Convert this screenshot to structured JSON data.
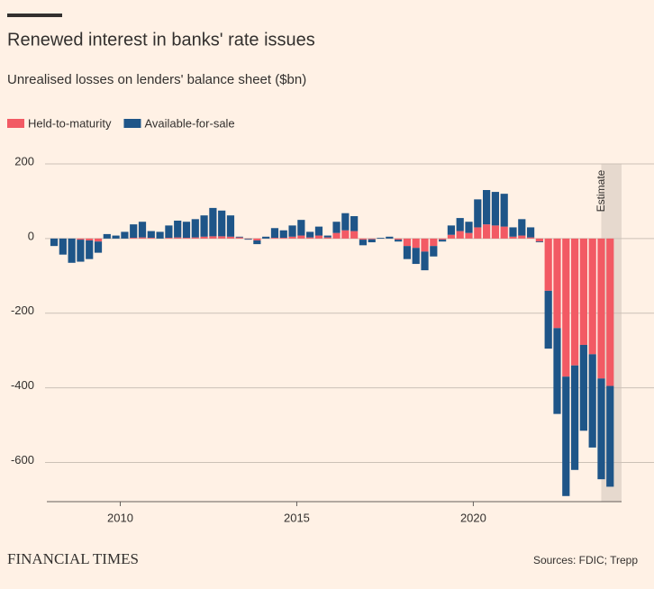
{
  "chart_data": {
    "type": "stacked-bar",
    "title": "Renewed interest in banks' rate issues",
    "subtitle": "Unrealised losses on lenders' balance sheet ($bn)",
    "source": "Sources: FDIC; Trepp",
    "brand": "FINANCIAL TIMES",
    "annotation": {
      "text": "Estimate",
      "range": [
        2023.625,
        2024.2
      ]
    },
    "x": [
      2008.125,
      2008.375,
      2008.625,
      2008.875,
      2009.125,
      2009.375,
      2009.625,
      2009.875,
      2010.125,
      2010.375,
      2010.625,
      2010.875,
      2011.125,
      2011.375,
      2011.625,
      2011.875,
      2012.125,
      2012.375,
      2012.625,
      2012.875,
      2013.125,
      2013.375,
      2013.625,
      2013.875,
      2014.125,
      2014.375,
      2014.625,
      2014.875,
      2015.125,
      2015.375,
      2015.625,
      2015.875,
      2016.125,
      2016.375,
      2016.625,
      2016.875,
      2017.125,
      2017.375,
      2017.625,
      2017.875,
      2018.125,
      2018.375,
      2018.625,
      2018.875,
      2019.125,
      2019.375,
      2019.625,
      2019.875,
      2020.125,
      2020.375,
      2020.625,
      2020.875,
      2021.125,
      2021.375,
      2021.625,
      2021.875,
      2022.125,
      2022.375,
      2022.625,
      2022.875,
      2023.125,
      2023.375,
      2023.625,
      2023.875
    ],
    "series": [
      {
        "name": "Held-to-maturity",
        "color": "#f25a64",
        "values": [
          0,
          0,
          0,
          -3,
          -5,
          -8,
          0,
          0,
          0,
          2,
          3,
          2,
          0,
          2,
          3,
          2,
          3,
          5,
          6,
          6,
          5,
          3,
          -1,
          -5,
          0,
          2,
          2,
          5,
          8,
          3,
          8,
          3,
          15,
          22,
          20,
          -3,
          -2,
          0,
          0,
          -3,
          -20,
          -25,
          -35,
          -20,
          -3,
          10,
          20,
          15,
          30,
          38,
          35,
          32,
          5,
          8,
          3,
          -8,
          -140,
          -240,
          -370,
          -340,
          -285,
          -310,
          -375,
          -395
        ]
      },
      {
        "name": "Available-for-sale",
        "color": "#1e5588",
        "values": [
          -20,
          -43,
          -65,
          -59,
          -50,
          -30,
          12,
          8,
          18,
          36,
          42,
          18,
          18,
          33,
          45,
          43,
          49,
          57,
          76,
          69,
          57,
          2,
          -2,
          -10,
          5,
          26,
          20,
          30,
          42,
          15,
          24,
          5,
          30,
          46,
          40,
          -15,
          -8,
          2,
          5,
          -5,
          -35,
          -43,
          -50,
          -28,
          -5,
          25,
          35,
          30,
          75,
          92,
          90,
          88,
          25,
          44,
          27,
          -2,
          -155,
          -230,
          -320,
          -280,
          -230,
          -250,
          -270,
          -270
        ]
      }
    ],
    "xlim": [
      2007.92,
      2024.2
    ],
    "xticks": [
      2010,
      2015,
      2020
    ],
    "ylim": [
      -705,
      200
    ],
    "yticks": [
      200,
      0,
      -200,
      -400,
      -600
    ],
    "grid": true
  }
}
